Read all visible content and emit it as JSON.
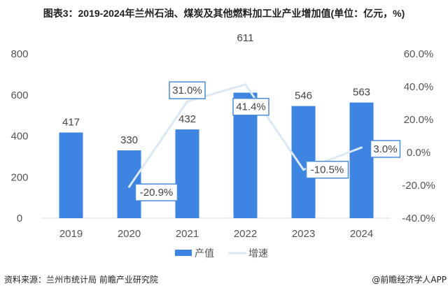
{
  "title": "图表3：2019-2024年兰州石油、煤炭及其他燃料加工业产业增加值(单位：亿元，%)",
  "source": "资料来源：兰州市统计局 前瞻产业研究院",
  "credit": "@前瞻经济学人APP",
  "chart_data": {
    "type": "bar",
    "categories": [
      "2019",
      "2020",
      "2021",
      "2022",
      "2023",
      "2024"
    ],
    "series": [
      {
        "name": "产值",
        "type": "bar",
        "axis": "left",
        "color": "#3d85e0",
        "values": [
          417,
          330,
          432,
          611,
          546,
          563
        ],
        "labels": [
          "417",
          "330",
          "432",
          "611",
          "546",
          "563"
        ]
      },
      {
        "name": "增速",
        "type": "line",
        "axis": "right",
        "color": "#dce8f6",
        "values": [
          null,
          -20.9,
          31.0,
          41.4,
          -10.5,
          3.0
        ],
        "labels": [
          "",
          "-20.9%",
          "31.0%",
          "41.4%",
          "-10.5%",
          "3.0%"
        ]
      }
    ],
    "left_axis": {
      "range": [
        0,
        800
      ],
      "ticks": [
        "0",
        "200",
        "400",
        "600",
        "800"
      ]
    },
    "right_axis": {
      "range": [
        -40,
        60
      ],
      "ticks": [
        "-40.0%",
        "-20.0%",
        "0.0%",
        "20.0%",
        "40.0%",
        "60.0%"
      ]
    },
    "legend": "bottom",
    "grid": false
  }
}
